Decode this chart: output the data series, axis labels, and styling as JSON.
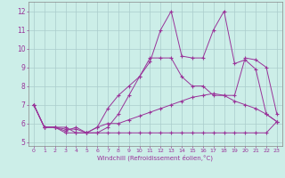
{
  "xlabel": "Windchill (Refroidissement éolien,°C)",
  "background_color": "#cceee8",
  "grid_color": "#aacccc",
  "line_color": "#993399",
  "x_ticks": [
    0,
    1,
    2,
    3,
    4,
    5,
    6,
    7,
    8,
    9,
    10,
    11,
    12,
    13,
    14,
    15,
    16,
    17,
    18,
    19,
    20,
    21,
    22,
    23
  ],
  "ylim": [
    4.8,
    12.5
  ],
  "xlim": [
    -0.5,
    23.5
  ],
  "series1_y": [
    7.0,
    5.8,
    5.8,
    5.5,
    5.5,
    5.5,
    5.5,
    5.5,
    5.5,
    5.5,
    5.5,
    5.5,
    5.5,
    5.5,
    5.5,
    5.5,
    5.5,
    5.5,
    5.5,
    5.5,
    5.5,
    5.5,
    5.5,
    6.1
  ],
  "series2_y": [
    7.0,
    5.8,
    5.8,
    5.7,
    5.7,
    5.5,
    5.8,
    6.0,
    6.0,
    6.2,
    6.4,
    6.6,
    6.8,
    7.0,
    7.2,
    7.4,
    7.5,
    7.6,
    7.5,
    7.2,
    7.0,
    6.8,
    6.5,
    6.1
  ],
  "series3_y": [
    7.0,
    5.8,
    5.8,
    5.6,
    5.8,
    5.5,
    5.8,
    6.8,
    7.5,
    8.0,
    8.5,
    9.3,
    11.0,
    12.0,
    9.6,
    9.5,
    9.5,
    11.0,
    12.0,
    9.2,
    9.4,
    8.9,
    6.5,
    6.1
  ],
  "series4_y": [
    7.0,
    5.8,
    5.8,
    5.8,
    5.5,
    5.5,
    5.5,
    5.8,
    6.5,
    7.5,
    8.5,
    9.5,
    9.5,
    9.5,
    8.5,
    8.0,
    8.0,
    7.5,
    7.5,
    7.5,
    9.5,
    9.4,
    9.0,
    6.5
  ]
}
